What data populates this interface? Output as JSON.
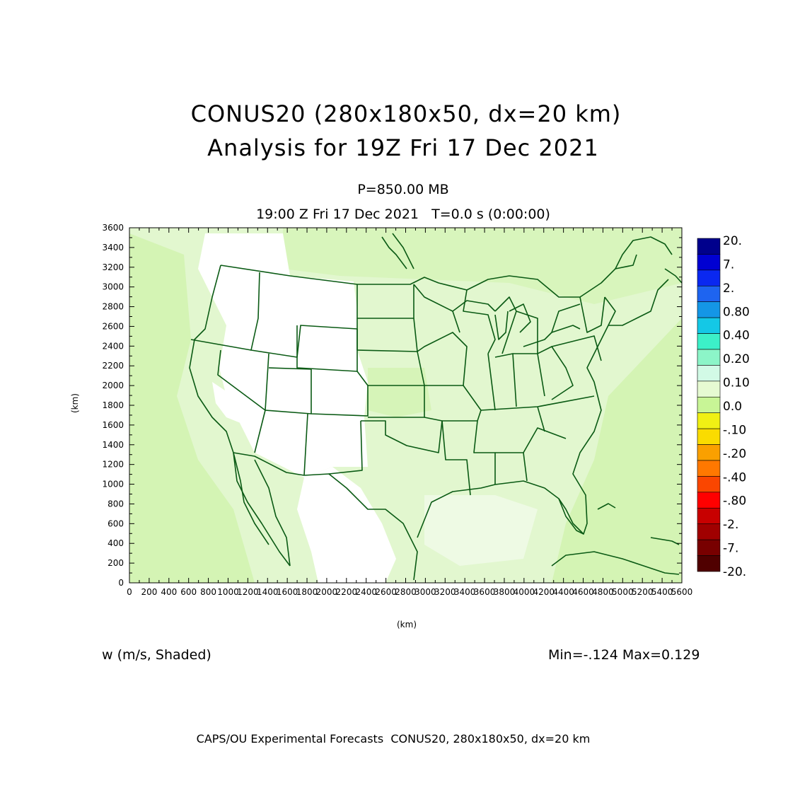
{
  "title_line1": "CONUS20 (280x180x50, dx=20 km)",
  "title_line2": "Analysis for 19Z Fri 17 Dec 2021",
  "level_label": "P=850.00 MB",
  "time_label": "19:00 Z Fri 17 Dec 2021   T=0.0 s (0:00:00)",
  "field_label": "w (m/s, Shaded)",
  "minmax_label": "Min=-.124 Max=0.129",
  "footer": "CAPS/OU Experimental Forecasts  CONUS20, 280x180x50, dx=20 km",
  "axes": {
    "x_label": "(km)",
    "y_label": "(km)",
    "x_ticks": [
      "0",
      "200",
      "400",
      "600",
      "800",
      "1000",
      "1200",
      "1400",
      "1600",
      "1800",
      "2000",
      "2200",
      "2400",
      "2600",
      "2800",
      "3000",
      "3200",
      "3400",
      "3600",
      "3800",
      "4000",
      "4200",
      "4400",
      "4600",
      "4800",
      "5000",
      "5200",
      "5400",
      "5600"
    ],
    "y_ticks": [
      "0",
      "200",
      "400",
      "600",
      "800",
      "1000",
      "1200",
      "1400",
      "1600",
      "1800",
      "2000",
      "2200",
      "2400",
      "2600",
      "2800",
      "3000",
      "3200",
      "3400",
      "3600"
    ],
    "x_range": [
      0,
      5600
    ],
    "y_range": [
      0,
      3600
    ]
  },
  "colorbar": {
    "labels": [
      "20.",
      "7.",
      "2.",
      "0.80",
      "0.40",
      "0.20",
      "0.10",
      "0.0",
      "-.10",
      "-.20",
      "-.40",
      "-.80",
      "-2.",
      "-7.",
      "-20."
    ],
    "colors": [
      "#00008c",
      "#0000d2",
      "#0a28f0",
      "#1e64f0",
      "#1496e6",
      "#14c8e6",
      "#3cf0c8",
      "#8cf5c8",
      "#d2fae6",
      "#e6fad2",
      "#c8f596",
      "#f0f014",
      "#fadc00",
      "#faa000",
      "#ff7800",
      "#fa4600",
      "#ff0000",
      "#c80000",
      "#a00000",
      "#780000",
      "#500000"
    ]
  },
  "map_colors": {
    "background": "#e8f8d8",
    "light": "#d6f6b8",
    "white": "#ffffff",
    "boundary": "#0a5a14"
  }
}
